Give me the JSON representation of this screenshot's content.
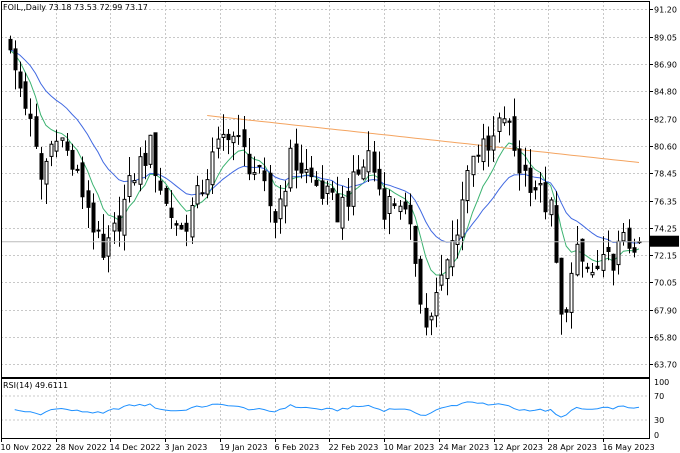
{
  "chart_data": {
    "type": "candlestick",
    "title": "FOIL,,Daily  73.18 73.53 72.99 73.17",
    "timeframe": "Daily",
    "current_price_label": "73.17",
    "ylim": [
      62.7,
      91.8
    ],
    "y_ticks": [
      "91.20",
      "89.05",
      "86.90",
      "84.80",
      "82.70",
      "80.60",
      "78.45",
      "76.35",
      "74.25",
      "72.15",
      "70.05",
      "67.90",
      "65.80",
      "63.70"
    ],
    "x_ticks": [
      "10 Nov 2022",
      "28 Nov 2022",
      "14 Dec 2022",
      "3 Jan 2023",
      "19 Jan 2023",
      "6 Feb 2023",
      "22 Feb 2023",
      "10 Mar 2023",
      "24 Mar 2023",
      "12 Apr 2023",
      "28 Apr 2023",
      "16 May 2023"
    ],
    "grid": true,
    "colors": {
      "candle": "#000000",
      "ma_fast": "#3cb371",
      "ma_mid": "#4169e1",
      "ma_slow": "#f4a460",
      "rsi": "#1e90ff",
      "grid": "#c8c8c8"
    },
    "anchors": [
      [
        0,
        87.5
      ],
      [
        3,
        84.0
      ],
      [
        6,
        78.0
      ],
      [
        9,
        82.0
      ],
      [
        12,
        79.0
      ],
      [
        15,
        76.0
      ],
      [
        18,
        71.5
      ],
      [
        21,
        75.0
      ],
      [
        24,
        78.5
      ],
      [
        27,
        80.5
      ],
      [
        30,
        76.0
      ],
      [
        33,
        74.0
      ],
      [
        36,
        76.5
      ],
      [
        39,
        79.5
      ],
      [
        42,
        82.0
      ],
      [
        45,
        80.0
      ],
      [
        48,
        78.0
      ],
      [
        51,
        75.0
      ],
      [
        54,
        79.5
      ],
      [
        57,
        78.5
      ],
      [
        60,
        77.0
      ],
      [
        63,
        75.5
      ],
      [
        66,
        77.5
      ],
      [
        69,
        80.0
      ],
      [
        72,
        76.0
      ],
      [
        75,
        76.5
      ],
      [
        78,
        72.0
      ],
      [
        80,
        66.5
      ],
      [
        83,
        70.0
      ],
      [
        86,
        74.5
      ],
      [
        89,
        80.5
      ],
      [
        92,
        80.0
      ],
      [
        95,
        83.0
      ],
      [
        98,
        79.0
      ],
      [
        101,
        77.5
      ],
      [
        104,
        75.5
      ],
      [
        106,
        67.0
      ],
      [
        109,
        72.0
      ],
      [
        112,
        70.5
      ],
      [
        115,
        71.5
      ],
      [
        118,
        73.0
      ],
      [
        121,
        73.2
      ]
    ],
    "ohlc_last": {
      "open": 73.18,
      "high": 73.53,
      "low": 72.99,
      "close": 73.17
    },
    "sma_slow": {
      "start": 84.6,
      "end": 79.3,
      "start_gap": 38
    },
    "rsi": {
      "label": "RSI(14) 49.6111",
      "ylim": [
        0,
        100
      ],
      "levels": [
        70,
        30
      ],
      "tick_labels": [
        "100",
        "70",
        "30",
        "0"
      ]
    }
  }
}
